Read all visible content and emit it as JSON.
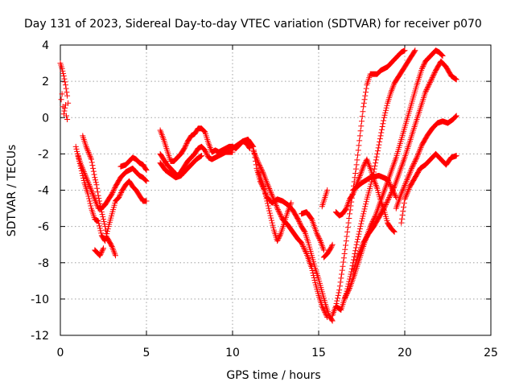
{
  "chart_data": {
    "type": "scatter",
    "title": "Day 131 of 2023, Sidereal Day-to-day VTEC variation (SDTVAR) for receiver p070",
    "xlabel": "GPS time / hours",
    "ylabel": "SDTVAR / TECUs",
    "xlim": [
      0,
      25
    ],
    "ylim": [
      -12,
      4
    ],
    "xticks": [
      0,
      5,
      10,
      15,
      20,
      25
    ],
    "yticks": [
      -12,
      -10,
      -8,
      -6,
      -4,
      -2,
      0,
      2,
      4
    ],
    "grid": true,
    "marker": "plus",
    "color": "#ff0000",
    "series": [
      {
        "x": [
          0.0,
          0.1,
          0.2,
          0.3,
          0.4,
          0.45
        ],
        "y": [
          3.0,
          2.7,
          2.3,
          1.8,
          1.2,
          0.8
        ]
      },
      {
        "x": [
          0.05,
          0.1,
          0.15,
          0.2,
          0.3,
          0.35,
          0.4
        ],
        "y": [
          1.0,
          1.3,
          0.6,
          0.2,
          0.7,
          0.1,
          -0.1
        ]
      },
      {
        "x": [
          0.9,
          1.0,
          1.2,
          1.4,
          1.6,
          1.8,
          2.0,
          2.2,
          2.4,
          2.6,
          2.8,
          3.0,
          3.2,
          3.4,
          3.6,
          3.8,
          4.0,
          4.2,
          4.4,
          4.6,
          4.8,
          5.0
        ],
        "y": [
          -1.6,
          -2.0,
          -2.8,
          -3.6,
          -4.2,
          -5.0,
          -5.6,
          -5.7,
          -6.5,
          -6.8,
          -6.0,
          -5.3,
          -4.6,
          -4.4,
          -4.0,
          -3.7,
          -3.5,
          -3.8,
          -4.0,
          -4.3,
          -4.6,
          -4.6
        ]
      },
      {
        "x": [
          1.0,
          1.2,
          1.5,
          1.8,
          2.0,
          2.2,
          2.4,
          2.6,
          2.8,
          3.0,
          3.2,
          3.5,
          3.8,
          4.0,
          4.2,
          4.4,
          4.6,
          4.8,
          5.0
        ],
        "y": [
          -2.0,
          -2.6,
          -3.3,
          -4.0,
          -4.5,
          -5.0,
          -5.0,
          -4.8,
          -4.5,
          -4.2,
          -3.8,
          -3.3,
          -3.0,
          -2.9,
          -2.8,
          -3.0,
          -3.2,
          -3.3,
          -3.5
        ]
      },
      {
        "x": [
          1.3,
          1.5,
          1.8,
          2.0,
          2.1,
          2.2,
          2.4,
          2.6,
          2.7,
          3.0,
          3.2
        ],
        "y": [
          -1.0,
          -1.6,
          -2.3,
          -3.3,
          -3.7,
          -4.3,
          -5.2,
          -6.0,
          -6.6,
          -7.1,
          -7.6
        ]
      },
      {
        "x": [
          2.0,
          2.1,
          2.2,
          2.3,
          2.4,
          2.5
        ],
        "y": [
          -7.3,
          -7.4,
          -7.5,
          -7.6,
          -7.4,
          -7.2
        ]
      },
      {
        "x": [
          3.5,
          3.8,
          4.0,
          4.2,
          4.4,
          4.6,
          4.8,
          5.0
        ],
        "y": [
          -2.7,
          -2.6,
          -2.4,
          -2.2,
          -2.3,
          -2.5,
          -2.6,
          -2.9
        ]
      },
      {
        "x": [
          5.8,
          6.0,
          6.2,
          6.4,
          6.6,
          6.8,
          7.0,
          7.2,
          7.4,
          7.6,
          7.8,
          8.0,
          8.2,
          8.4,
          8.6,
          8.8,
          9.0,
          9.2,
          9.4,
          9.6,
          9.8,
          10.0,
          10.2,
          10.4,
          10.6,
          10.8,
          11.0
        ],
        "y": [
          -0.7,
          -1.2,
          -1.8,
          -2.4,
          -2.4,
          -2.2,
          -2.0,
          -1.7,
          -1.3,
          -1.0,
          -0.9,
          -0.6,
          -0.6,
          -0.8,
          -1.4,
          -1.9,
          -1.8,
          -1.9,
          -1.8,
          -1.7,
          -1.6,
          -1.6,
          -1.7,
          -1.5,
          -1.3,
          -1.4,
          -1.7
        ]
      },
      {
        "x": [
          5.8,
          6.0,
          6.2,
          6.4,
          6.6,
          6.8,
          7.0,
          7.2,
          7.4,
          7.6,
          7.8,
          8.0,
          8.2,
          8.4,
          8.6,
          8.8,
          9.0,
          9.2,
          9.4,
          9.6,
          9.8,
          10.0
        ],
        "y": [
          -2.0,
          -2.3,
          -2.6,
          -2.8,
          -3.0,
          -3.2,
          -3.0,
          -2.7,
          -2.4,
          -2.2,
          -2.0,
          -1.7,
          -1.6,
          -1.8,
          -2.2,
          -2.3,
          -2.2,
          -2.1,
          -2.0,
          -1.9,
          -1.9,
          -1.9
        ]
      },
      {
        "x": [
          5.8,
          6.1,
          6.4,
          6.7,
          7.0,
          7.3,
          7.6,
          7.9,
          8.2
        ],
        "y": [
          -2.5,
          -2.9,
          -3.1,
          -3.3,
          -3.2,
          -2.9,
          -2.6,
          -2.3,
          -2.1
        ]
      },
      {
        "x": [
          10.0,
          10.3,
          10.6,
          10.9,
          11.2,
          11.4,
          11.6,
          11.8,
          12.0,
          12.3,
          12.6,
          12.9,
          13.2,
          13.5,
          13.8,
          14.0,
          14.2,
          14.4,
          14.6,
          14.8,
          15.0,
          15.2,
          15.4,
          15.6,
          15.8
        ],
        "y": [
          -1.7,
          -1.5,
          -1.3,
          -1.2,
          -1.6,
          -2.8,
          -3.5,
          -3.9,
          -4.4,
          -4.7,
          -4.5,
          -4.6,
          -4.8,
          -5.1,
          -5.6,
          -6.0,
          -6.3,
          -6.9,
          -7.6,
          -8.3,
          -8.9,
          -9.6,
          -10.3,
          -10.9,
          -11.2
        ]
      },
      {
        "x": [
          11.2,
          11.5,
          11.8,
          12.0,
          12.3,
          12.6,
          12.9,
          13.2,
          13.5,
          13.8,
          14.0,
          14.3,
          14.6,
          14.8,
          15.0,
          15.2,
          15.4,
          15.5
        ],
        "y": [
          -1.8,
          -2.5,
          -3.1,
          -3.6,
          -4.3,
          -5.0,
          -5.6,
          -5.9,
          -6.3,
          -6.7,
          -6.9,
          -7.5,
          -8.3,
          -9.1,
          -9.8,
          -10.4,
          -10.8,
          -11.0
        ]
      },
      {
        "x": [
          11.5,
          11.8,
          12.0,
          12.2,
          12.4,
          12.6,
          12.8,
          13.0,
          13.2,
          13.4
        ],
        "y": [
          -3.0,
          -3.8,
          -4.6,
          -5.4,
          -6.2,
          -6.8,
          -6.4,
          -5.8,
          -5.2,
          -4.7
        ]
      },
      {
        "x": [
          14.0,
          14.3,
          14.6,
          14.9,
          15.1,
          15.3
        ],
        "y": [
          -5.3,
          -5.2,
          -5.6,
          -6.4,
          -6.8,
          -7.3
        ]
      },
      {
        "x": [
          15.3,
          15.5,
          15.7,
          15.8
        ],
        "y": [
          -7.7,
          -7.5,
          -7.2,
          -7.0
        ]
      },
      {
        "x": [
          15.2,
          15.3,
          15.4,
          15.5
        ],
        "y": [
          -4.9,
          -4.6,
          -4.3,
          -4.0
        ]
      },
      {
        "x": [
          15.8,
          16.0,
          16.2,
          16.4,
          16.6,
          16.8,
          17.0,
          17.2,
          17.4,
          17.6,
          17.8,
          18.0,
          18.2,
          18.4,
          18.6,
          18.8,
          19.0,
          19.2,
          19.4,
          19.6,
          19.8,
          20.0
        ],
        "y": [
          -10.9,
          -10.4,
          -9.5,
          -8.2,
          -6.8,
          -5.3,
          -4.0,
          -2.6,
          -1.0,
          0.6,
          1.8,
          2.4,
          2.4,
          2.4,
          2.6,
          2.7,
          2.8,
          3.0,
          3.2,
          3.4,
          3.6,
          3.7
        ]
      },
      {
        "x": [
          16.0,
          16.3,
          16.6,
          16.9,
          17.2,
          17.5,
          17.8,
          18.0,
          18.2,
          18.4,
          18.6,
          18.8,
          19.0,
          19.2,
          19.4,
          19.6,
          19.8,
          20.0,
          20.2,
          20.4,
          20.6
        ],
        "y": [
          -10.4,
          -10.6,
          -9.7,
          -8.5,
          -7.0,
          -5.7,
          -4.5,
          -3.8,
          -3.0,
          -2.0,
          -1.0,
          0.0,
          0.8,
          1.4,
          1.9,
          2.2,
          2.5,
          2.8,
          3.1,
          3.4,
          3.7
        ]
      },
      {
        "x": [
          16.5,
          16.8,
          17.1,
          17.4,
          17.7,
          18.0,
          18.3,
          18.6,
          18.9,
          19.2,
          19.5,
          19.8,
          20.1,
          20.4,
          20.7,
          21.0,
          21.2,
          21.4,
          21.6,
          21.8,
          22.0,
          22.2
        ],
        "y": [
          -10.0,
          -9.4,
          -8.6,
          -7.7,
          -6.8,
          -6.0,
          -5.4,
          -4.6,
          -3.8,
          -3.0,
          -2.2,
          -1.2,
          -0.2,
          0.8,
          1.8,
          2.7,
          3.1,
          3.3,
          3.5,
          3.7,
          3.6,
          3.4
        ]
      },
      {
        "x": [
          17.0,
          17.3,
          17.6,
          17.9,
          18.2,
          18.5,
          18.8,
          19.1,
          19.4,
          19.7,
          20.0,
          20.3,
          20.6,
          20.9,
          21.2,
          21.5,
          21.8,
          22.1,
          22.4,
          22.7,
          23.0
        ],
        "y": [
          -8.5,
          -7.6,
          -6.9,
          -6.4,
          -6.0,
          -5.5,
          -5.0,
          -4.4,
          -3.8,
          -3.0,
          -2.2,
          -1.3,
          -0.4,
          0.5,
          1.4,
          2.0,
          2.6,
          3.1,
          2.8,
          2.3,
          2.1
        ]
      },
      {
        "x": [
          16.0,
          16.2,
          16.4,
          16.6,
          16.8,
          17.0,
          17.2,
          17.4,
          17.6,
          17.8,
          18.0,
          18.2,
          18.4,
          18.6,
          18.8,
          19.0,
          19.2,
          19.4
        ],
        "y": [
          -5.2,
          -5.4,
          -5.3,
          -5.0,
          -4.5,
          -4.2,
          -3.7,
          -3.2,
          -2.7,
          -2.3,
          -2.8,
          -3.4,
          -3.9,
          -4.6,
          -5.1,
          -5.8,
          -6.1,
          -6.3
        ]
      },
      {
        "x": [
          19.5,
          19.8,
          20.1,
          20.4,
          20.7,
          21.0,
          21.3,
          21.6,
          21.9,
          22.2,
          22.5,
          22.8,
          23.0
        ],
        "y": [
          -5.0,
          -4.2,
          -3.5,
          -2.8,
          -2.2,
          -1.5,
          -1.0,
          -0.6,
          -0.3,
          -0.2,
          -0.3,
          -0.1,
          0.1
        ]
      },
      {
        "x": [
          19.8,
          20.0,
          20.3,
          20.6,
          20.9,
          21.2,
          21.5,
          21.8,
          22.1,
          22.4,
          22.7,
          23.0
        ],
        "y": [
          -5.8,
          -4.5,
          -3.8,
          -3.3,
          -2.8,
          -2.6,
          -2.3,
          -2.0,
          -2.3,
          -2.6,
          -2.2,
          -2.1
        ]
      },
      {
        "x": [
          17.0,
          17.5,
          18.0,
          18.5,
          19.0,
          19.5
        ],
        "y": [
          -4.0,
          -3.6,
          -3.3,
          -3.2,
          -3.4,
          -4.4
        ]
      }
    ]
  }
}
